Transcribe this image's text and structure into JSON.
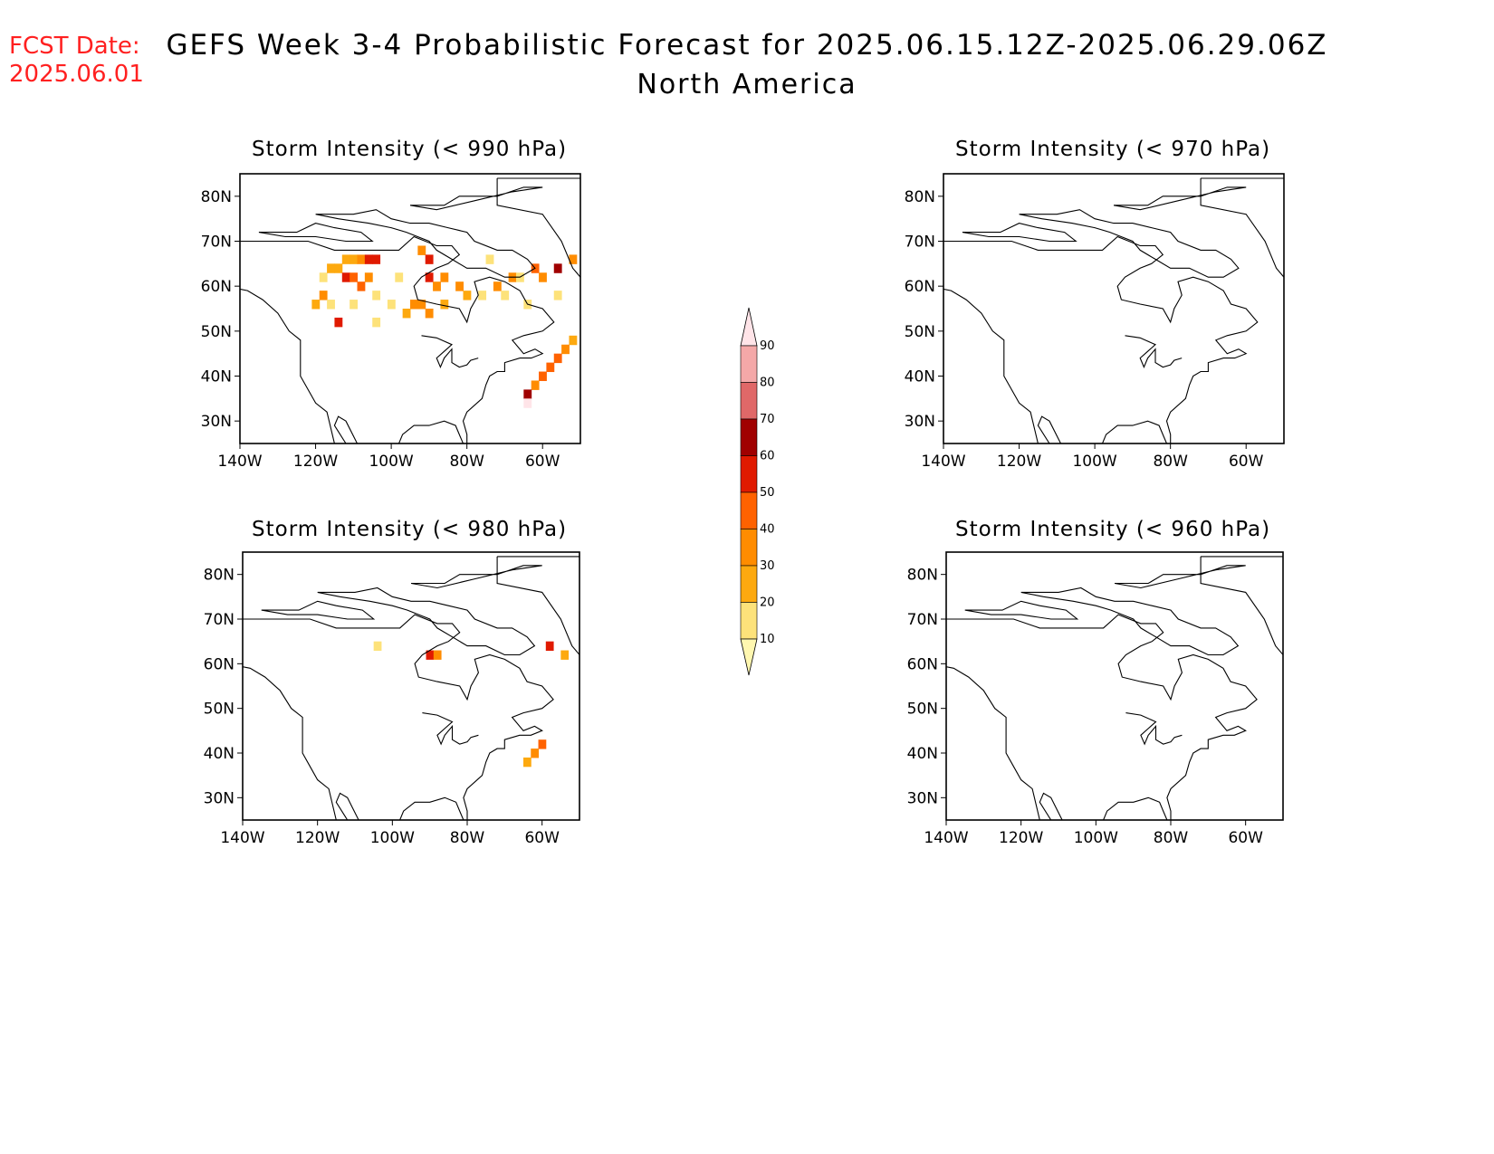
{
  "header": {
    "fcst_label": "FCST Date:",
    "fcst_date": "2025.06.01",
    "title": "GEFS Week 3-4 Probabilistic Forecast for 2025.06.15.12Z-2025.06.29.06Z",
    "subtitle": "North America"
  },
  "panels": [
    {
      "title": "Storm Intensity (< 990 hPa)"
    },
    {
      "title": "Storm Intensity (< 970 hPa)"
    },
    {
      "title": "Storm Intensity (< 980 hPa)"
    },
    {
      "title": "Storm Intensity (< 960 hPa)"
    }
  ],
  "axes": {
    "lon_ticks": [
      "140W",
      "120W",
      "100W",
      "80W",
      "60W"
    ],
    "lat_ticks": [
      "80N",
      "70N",
      "60N",
      "50N",
      "40N",
      "30N"
    ],
    "lon_range": [
      -140,
      -50
    ],
    "lat_range": [
      25,
      85
    ]
  },
  "colorbar": {
    "levels": [
      10,
      20,
      30,
      40,
      50,
      60,
      70,
      80,
      90
    ],
    "labels": [
      "10",
      "20",
      "30",
      "40",
      "50",
      "60",
      "70",
      "80",
      "90"
    ],
    "colors": [
      "#fff7b0",
      "#fde27a",
      "#fda90f",
      "#ff8c00",
      "#ff6200",
      "#e01a00",
      "#a00000",
      "#e06868",
      "#f4a8a8",
      "#ffe4e8"
    ]
  },
  "probability_cells": {
    "p990": [
      [
        -118,
        62,
        1
      ],
      [
        -116,
        64,
        2
      ],
      [
        -114,
        64,
        2
      ],
      [
        -112,
        66,
        2
      ],
      [
        -110,
        66,
        2
      ],
      [
        -108,
        66,
        3
      ],
      [
        -106,
        66,
        5
      ],
      [
        -104,
        66,
        5
      ],
      [
        -112,
        62,
        5
      ],
      [
        -110,
        62,
        4
      ],
      [
        -108,
        60,
        4
      ],
      [
        -106,
        62,
        3
      ],
      [
        -118,
        58,
        3
      ],
      [
        -116,
        56,
        1
      ],
      [
        -114,
        52,
        5
      ],
      [
        -120,
        56,
        2
      ],
      [
        -110,
        56,
        1
      ],
      [
        -104,
        58,
        1
      ],
      [
        -92,
        68,
        3
      ],
      [
        -90,
        66,
        5
      ],
      [
        -90,
        62,
        5
      ],
      [
        -88,
        60,
        3
      ],
      [
        -86,
        62,
        3
      ],
      [
        -82,
        60,
        3
      ],
      [
        -92,
        56,
        3
      ],
      [
        -90,
        54,
        3
      ],
      [
        -94,
        56,
        3
      ],
      [
        -96,
        54,
        2
      ],
      [
        -86,
        56,
        2
      ],
      [
        -80,
        58,
        2
      ],
      [
        -76,
        58,
        1
      ],
      [
        -72,
        60,
        3
      ],
      [
        -68,
        62,
        3
      ],
      [
        -62,
        64,
        4
      ],
      [
        -60,
        62,
        3
      ],
      [
        -56,
        64,
        6
      ],
      [
        -52,
        66,
        3
      ],
      [
        -70,
        58,
        1
      ],
      [
        -64,
        56,
        1
      ],
      [
        -56,
        58,
        1
      ],
      [
        -54,
        46,
        3
      ],
      [
        -56,
        44,
        4
      ],
      [
        -58,
        42,
        4
      ],
      [
        -60,
        40,
        4
      ],
      [
        -62,
        38,
        3
      ],
      [
        -64,
        36,
        6
      ],
      [
        -64,
        34,
        9
      ],
      [
        -52,
        48,
        2
      ],
      [
        -74,
        66,
        1
      ],
      [
        -66,
        62,
        1
      ],
      [
        -98,
        62,
        1
      ],
      [
        -100,
        56,
        1
      ],
      [
        -104,
        52,
        1
      ]
    ],
    "p980": [
      [
        -104,
        64,
        1
      ],
      [
        -90,
        62,
        5
      ],
      [
        -88,
        62,
        3
      ],
      [
        -58,
        64,
        5
      ],
      [
        -54,
        62,
        2
      ],
      [
        -60,
        42,
        4
      ],
      [
        -62,
        40,
        3
      ],
      [
        -64,
        38,
        2
      ]
    ],
    "p970": [],
    "p960": []
  }
}
